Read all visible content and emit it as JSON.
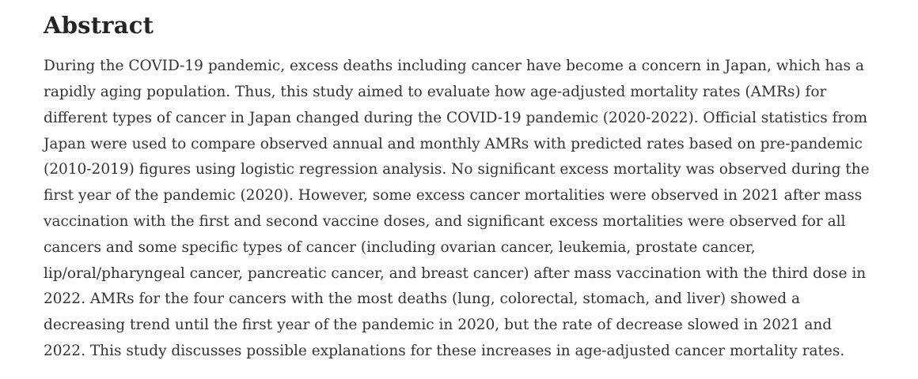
{
  "abstract": {
    "heading": "Abstract",
    "body": "During the COVID-19 pandemic, excess deaths including cancer have become a concern in Japan, which has a rapidly aging population. Thus, this study aimed to evaluate how age-adjusted mortality rates (AMRs) for different types of cancer in Japan changed during the COVID-19 pandemic (2020-2022). Official statistics from Japan were used to compare observed annual and monthly AMRs with predicted rates based on pre-pandemic (2010-2019) figures using logistic regression analysis. No significant excess mortality was observed during the first year of the pandemic (2020). However, some excess cancer mortalities were observed in 2021 after mass vaccination with the first and second vaccine doses, and significant excess mortalities were observed for all cancers and some specific types of cancer (including ovarian cancer, leukemia, prostate cancer, lip/oral/pharyngeal cancer, pancreatic cancer, and breast cancer) after mass vaccination with the third dose in 2022. AMRs for the four cancers with the most deaths (lung, colorectal, stomach, and liver) showed a decreasing trend until the first year of the pandemic in 2020, but the rate of decrease slowed in 2021 and 2022. This study discusses possible explanations for these increases in age-adjusted cancer mortality rates."
  },
  "colors": {
    "background": "#ffffff",
    "heading_text": "#222426",
    "body_text": "#333333"
  }
}
